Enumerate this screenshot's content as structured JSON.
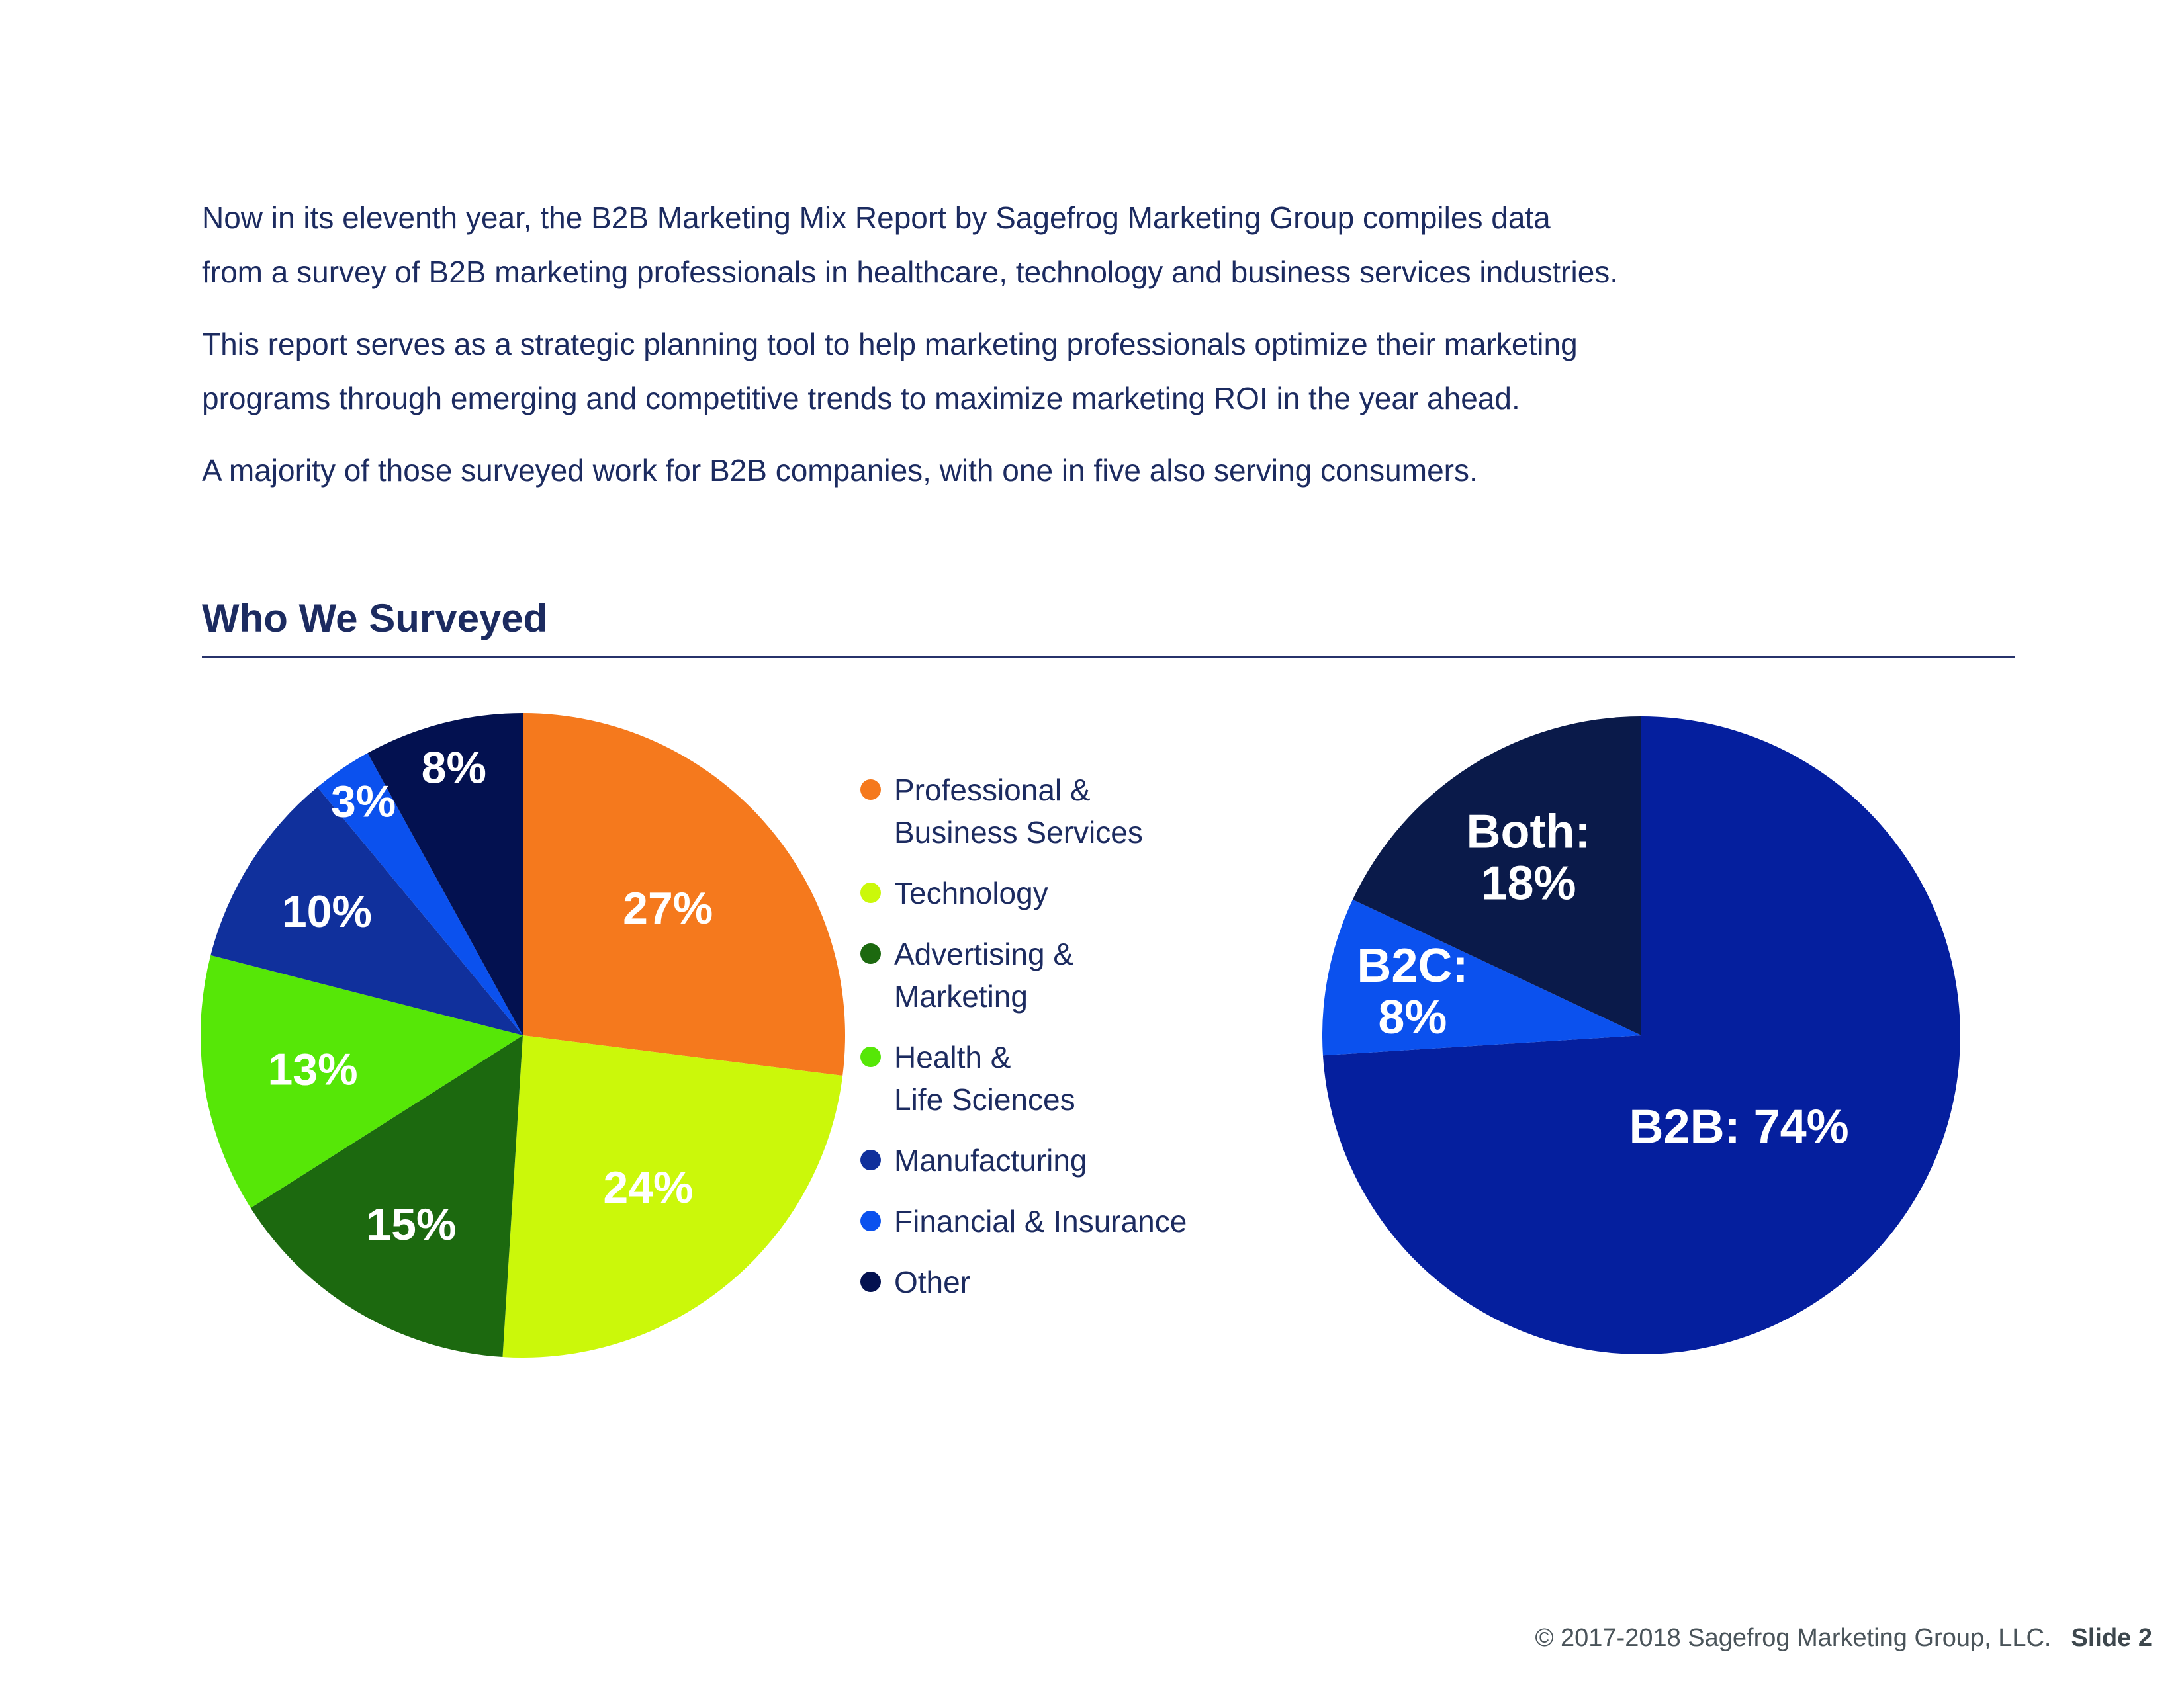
{
  "intro": {
    "paragraphs": [
      {
        "lines": [
          "Now in its eleventh year, the B2B Marketing Mix Report by Sagefrog Marketing Group compiles data",
          "from a survey of B2B marketing professionals in healthcare, technology and business services industries."
        ]
      },
      {
        "lines": [
          "This report serves as a strategic planning tool to help marketing professionals optimize their marketing",
          "programs through emerging and competitive trends to maximize marketing ROI in the year ahead."
        ]
      },
      {
        "lines": [
          "A majority of those surveyed work for B2B companies, with one in five also serving consumers."
        ]
      }
    ]
  },
  "section": {
    "title": "Who We Surveyed"
  },
  "legend": {
    "items": [
      {
        "lines": [
          "Professional &",
          "Business Services"
        ]
      },
      {
        "lines": [
          "Technology"
        ]
      },
      {
        "lines": [
          "Advertising &",
          "Marketing"
        ]
      },
      {
        "lines": [
          "Health &",
          "Life Sciences"
        ]
      },
      {
        "lines": [
          "Manufacturing"
        ]
      },
      {
        "lines": [
          "Financial & Insurance"
        ]
      },
      {
        "lines": [
          "Other"
        ]
      }
    ]
  },
  "footer": {
    "copyright": "© 2017-2018 Sagefrog Marketing Group, LLC.",
    "slide_label": "Slide 2"
  },
  "colors": {
    "body_text": "#1c2b60",
    "rule": "#27336b",
    "footer_text": "#4a545a",
    "label_text": "#ffffff"
  },
  "chart_data": [
    {
      "type": "pie",
      "title": "Industries of surveyed B2B marketing professionals",
      "unit": "%",
      "start_angle_deg": 0,
      "direction": "clockwise",
      "legend_position": "right",
      "slices": [
        {
          "label": "Professional & Business Services",
          "value": 27,
          "color": "#f5791d",
          "label_text": [
            "27%"
          ],
          "label_r": 0.6
        },
        {
          "label": "Technology",
          "value": 24,
          "color": "#cbf80a",
          "label_text": [
            "24%"
          ],
          "label_r": 0.61
        },
        {
          "label": "Advertising & Marketing",
          "value": 15,
          "color": "#1c690f",
          "label_text": [
            "15%"
          ],
          "label_r": 0.68
        },
        {
          "label": "Health & Life Sciences",
          "value": 13,
          "color": "#56e707",
          "label_text": [
            "13%"
          ],
          "label_r": 0.66
        },
        {
          "label": "Manufacturing",
          "value": 10,
          "color": "#10309c",
          "label_text": [
            "10%"
          ],
          "label_r": 0.72
        },
        {
          "label": "Financial & Insurance",
          "value": 3,
          "color": "#0b51ee",
          "label_text": [
            "3%"
          ],
          "label_r": 0.88
        },
        {
          "label": "Other",
          "value": 8,
          "color": "#031150",
          "label_text": [
            "8%"
          ],
          "label_r": 0.86
        }
      ]
    },
    {
      "type": "pie",
      "title": "B2B vs B2C focus of surveyed companies",
      "unit": "%",
      "start_angle_deg": 0,
      "direction": "clockwise",
      "legend_position": "none",
      "slices": [
        {
          "label": "B2B",
          "value": 74,
          "color": "#051f9e",
          "label_text": [
            "B2B: 74%"
          ],
          "label_r": 0.42
        },
        {
          "label": "B2C",
          "value": 8,
          "color": "#0b51ee",
          "label_text": [
            "B2C:",
            "8%"
          ],
          "label_r": 0.73
        },
        {
          "label": "Both",
          "value": 18,
          "color": "#0a1a4a",
          "label_text": [
            "Both:",
            "18%"
          ],
          "label_r": 0.66
        }
      ]
    }
  ]
}
